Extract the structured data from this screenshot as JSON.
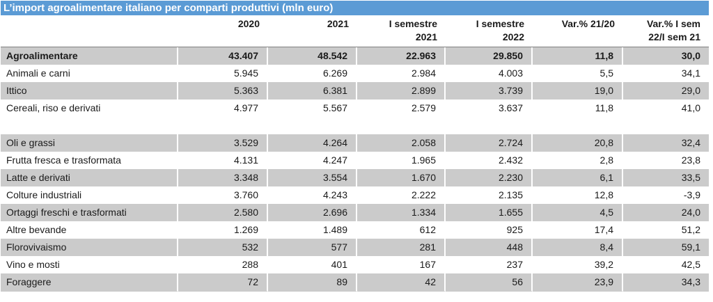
{
  "title": "L’import agroalimentare italiano per comparti produttivi (mln euro)",
  "colors": {
    "title_bar_bg": "#5B9BD5",
    "title_text": "#FFFFFF",
    "stripe": "#CBCBCB",
    "header_rule": "#808080",
    "body_text": "#1A1A1A"
  },
  "table": {
    "columns": [
      {
        "line1": "",
        "line2": ""
      },
      {
        "line1": "2020",
        "line2": ""
      },
      {
        "line1": "2021",
        "line2": ""
      },
      {
        "line1": "I semestre",
        "line2": "2021"
      },
      {
        "line1": "I semestre",
        "line2": "2022"
      },
      {
        "line1": "Var.% 21/20",
        "line2": ""
      },
      {
        "line1": "Var.% I sem",
        "line2": "22/I sem 21"
      }
    ],
    "rows": [
      {
        "label": "Agroalimentare",
        "values": [
          "43.407",
          "48.542",
          "22.963",
          "29.850",
          "11,8",
          "30,0"
        ],
        "bold": true,
        "shaded": true,
        "spacer": false
      },
      {
        "label": "Animali e carni",
        "values": [
          "5.945",
          "6.269",
          "2.984",
          "4.003",
          "5,5",
          "34,1"
        ],
        "bold": false,
        "shaded": false,
        "spacer": false
      },
      {
        "label": "Ittico",
        "values": [
          "5.363",
          "6.381",
          "2.899",
          "3.739",
          "19,0",
          "29,0"
        ],
        "bold": false,
        "shaded": true,
        "spacer": false
      },
      {
        "label": "Cereali, riso e derivati",
        "values": [
          "4.977",
          "5.567",
          "2.579",
          "3.637",
          "11,8",
          "41,0"
        ],
        "bold": false,
        "shaded": false,
        "spacer": false
      },
      {
        "label": "",
        "values": [
          "",
          "",
          "",
          "",
          "",
          ""
        ],
        "bold": false,
        "shaded": false,
        "spacer": true
      },
      {
        "label": "Oli e grassi",
        "values": [
          "3.529",
          "4.264",
          "2.058",
          "2.724",
          "20,8",
          "32,4"
        ],
        "bold": false,
        "shaded": true,
        "spacer": false
      },
      {
        "label": "Frutta fresca e trasformata",
        "values": [
          "4.131",
          "4.247",
          "1.965",
          "2.432",
          "2,8",
          "23,8"
        ],
        "bold": false,
        "shaded": false,
        "spacer": false
      },
      {
        "label": "Latte e derivati",
        "values": [
          "3.348",
          "3.554",
          "1.670",
          "2.230",
          "6,1",
          "33,5"
        ],
        "bold": false,
        "shaded": true,
        "spacer": false
      },
      {
        "label": "Colture industriali",
        "values": [
          "3.760",
          "4.243",
          "2.222",
          "2.135",
          "12,8",
          "-3,9"
        ],
        "bold": false,
        "shaded": false,
        "spacer": false
      },
      {
        "label": "Ortaggi freschi e trasformati",
        "values": [
          "2.580",
          "2.696",
          "1.334",
          "1.655",
          "4,5",
          "24,0"
        ],
        "bold": false,
        "shaded": true,
        "spacer": false
      },
      {
        "label": "Altre bevande",
        "values": [
          "1.269",
          "1.489",
          "612",
          "925",
          "17,4",
          "51,2"
        ],
        "bold": false,
        "shaded": false,
        "spacer": false
      },
      {
        "label": "Florovivaismo",
        "values": [
          "532",
          "577",
          "281",
          "448",
          "8,4",
          "59,1"
        ],
        "bold": false,
        "shaded": true,
        "spacer": false
      },
      {
        "label": "Vino e mosti",
        "values": [
          "288",
          "401",
          "167",
          "237",
          "39,2",
          "42,5"
        ],
        "bold": false,
        "shaded": false,
        "spacer": false
      },
      {
        "label": "Foraggere",
        "values": [
          "72",
          "89",
          "42",
          "56",
          "23,9",
          "34,3"
        ],
        "bold": false,
        "shaded": true,
        "spacer": false
      }
    ]
  },
  "chart_data": {
    "type": "table",
    "title": "L’import agroalimentare italiano per comparti produttivi (mln euro)",
    "columns": [
      "2020",
      "2021",
      "I semestre 2021",
      "I semestre 2022",
      "Var.% 21/20",
      "Var.% I sem 22/I sem 21"
    ],
    "unit": "mln euro",
    "rows": [
      {
        "category": "Agroalimentare",
        "values": [
          43407,
          48542,
          22963,
          29850,
          11.8,
          30.0
        ]
      },
      {
        "category": "Animali e carni",
        "values": [
          5945,
          6269,
          2984,
          4003,
          5.5,
          34.1
        ]
      },
      {
        "category": "Ittico",
        "values": [
          5363,
          6381,
          2899,
          3739,
          19.0,
          29.0
        ]
      },
      {
        "category": "Cereali, riso e derivati",
        "values": [
          4977,
          5567,
          2579,
          3637,
          11.8,
          41.0
        ]
      },
      {
        "category": "Oli e grassi",
        "values": [
          3529,
          4264,
          2058,
          2724,
          20.8,
          32.4
        ]
      },
      {
        "category": "Frutta fresca e trasformata",
        "values": [
          4131,
          4247,
          1965,
          2432,
          2.8,
          23.8
        ]
      },
      {
        "category": "Latte e derivati",
        "values": [
          3348,
          3554,
          1670,
          2230,
          6.1,
          33.5
        ]
      },
      {
        "category": "Colture industriali",
        "values": [
          3760,
          4243,
          2222,
          2135,
          12.8,
          -3.9
        ]
      },
      {
        "category": "Ortaggi freschi e trasformati",
        "values": [
          2580,
          2696,
          1334,
          1655,
          4.5,
          24.0
        ]
      },
      {
        "category": "Altre bevande",
        "values": [
          1269,
          1489,
          612,
          925,
          17.4,
          51.2
        ]
      },
      {
        "category": "Florovivaismo",
        "values": [
          532,
          577,
          281,
          448,
          8.4,
          59.1
        ]
      },
      {
        "category": "Vino e mosti",
        "values": [
          288,
          401,
          167,
          237,
          39.2,
          42.5
        ]
      },
      {
        "category": "Foraggere",
        "values": [
          72,
          89,
          42,
          56,
          23.9,
          34.3
        ]
      }
    ]
  }
}
